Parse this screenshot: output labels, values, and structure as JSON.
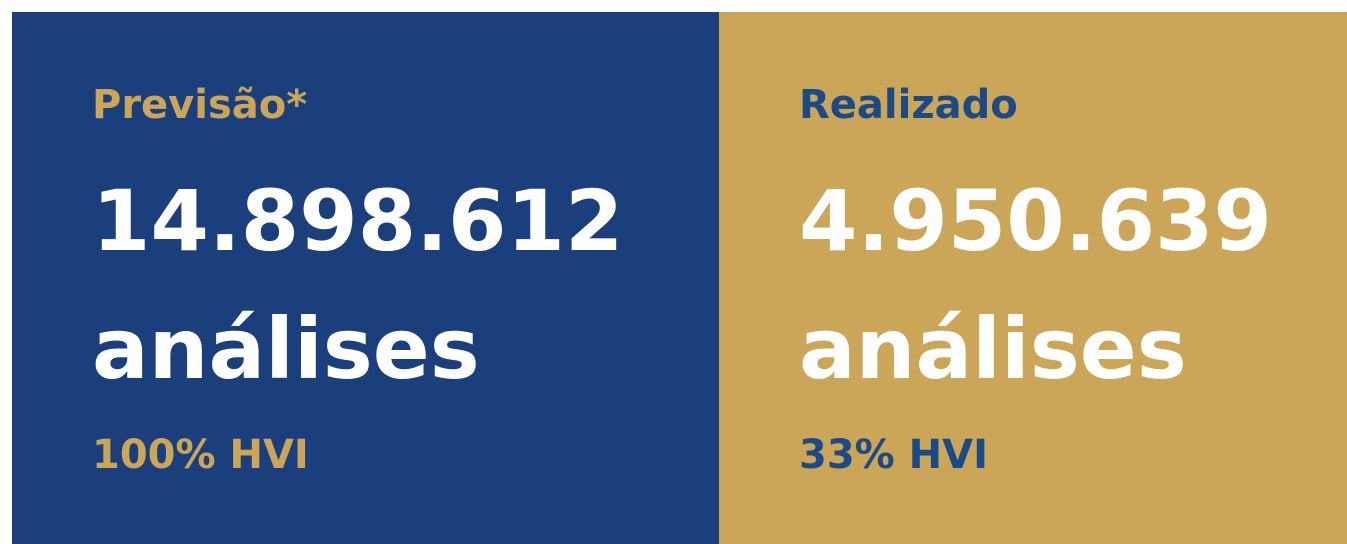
{
  "panels": [
    {
      "title": "Previsão*",
      "number": "14.898.612",
      "unit": "análises",
      "note": "100% HVI"
    },
    {
      "title": "Realizado",
      "number": "4.950.639",
      "unit": "análises",
      "note": "33% HVI"
    }
  ]
}
